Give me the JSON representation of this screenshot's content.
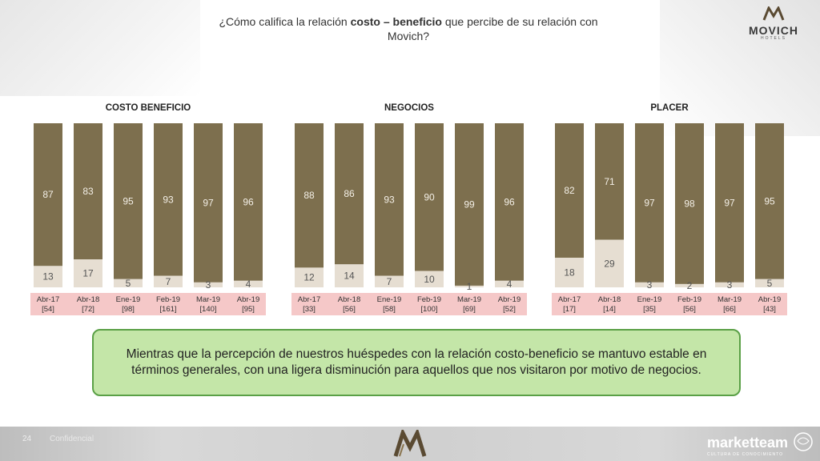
{
  "header": {
    "title_pre": "¿Cómo califica la relación ",
    "title_bold": "costo – beneficio",
    "title_post": " que percibe de su relación con Movich?"
  },
  "logo": {
    "name": "MOVICH",
    "sub": "HOTELS"
  },
  "colors": {
    "top_segment": "#7d6f4e",
    "bottom_segment": "#e6ded2",
    "label_bg": "#f5c8c8"
  },
  "chart_data": [
    {
      "type": "bar",
      "stacked": true,
      "title": "COSTO BENEFICIO",
      "categories": [
        "Abr-17",
        "Abr-18",
        "Ene-19",
        "Feb-19",
        "Mar-19",
        "Abr-19"
      ],
      "sample_sizes": [
        "[54]",
        "[72]",
        "[98]",
        "[161]",
        "[140]",
        "[95]"
      ],
      "series": [
        {
          "values": [
            87,
            83,
            95,
            93,
            97,
            96
          ]
        },
        {
          "values": [
            13,
            17,
            5,
            7,
            3,
            4
          ]
        }
      ],
      "ylim": [
        0,
        100
      ]
    },
    {
      "type": "bar",
      "stacked": true,
      "title": "NEGOCIOS",
      "categories": [
        "Abr-17",
        "Abr-18",
        "Ene-19",
        "Feb-19",
        "Mar-19",
        "Abr-19"
      ],
      "sample_sizes": [
        "[33]",
        "[56]",
        "[58]",
        "[100]",
        "[69]",
        "[52]"
      ],
      "series": [
        {
          "values": [
            88,
            86,
            93,
            90,
            99,
            96
          ]
        },
        {
          "values": [
            12,
            14,
            7,
            10,
            1,
            4
          ]
        }
      ],
      "ylim": [
        0,
        100
      ]
    },
    {
      "type": "bar",
      "stacked": true,
      "title": "PLACER",
      "categories": [
        "Abr-17",
        "Abr-18",
        "Ene-19",
        "Feb-19",
        "Mar-19",
        "Abr-19"
      ],
      "sample_sizes": [
        "[17]",
        "[14]",
        "[35]",
        "[56]",
        "[66]",
        "[43]"
      ],
      "series": [
        {
          "values": [
            82,
            71,
            97,
            98,
            97,
            95
          ]
        },
        {
          "values": [
            18,
            29,
            3,
            2,
            3,
            5
          ]
        }
      ],
      "ylim": [
        0,
        100
      ]
    }
  ],
  "summary": "Mientras que la percepción de nuestros huéspedes con la relación costo-beneficio se mantuvo estable en términos generales, con una ligera disminución para aquellos que nos visitaron por motivo de negocios.",
  "footer": {
    "page": "24",
    "confidential": "Confidencial",
    "brand": "marketteam",
    "brand_sub": "CULTURA DE CONOCIMIENTO"
  }
}
